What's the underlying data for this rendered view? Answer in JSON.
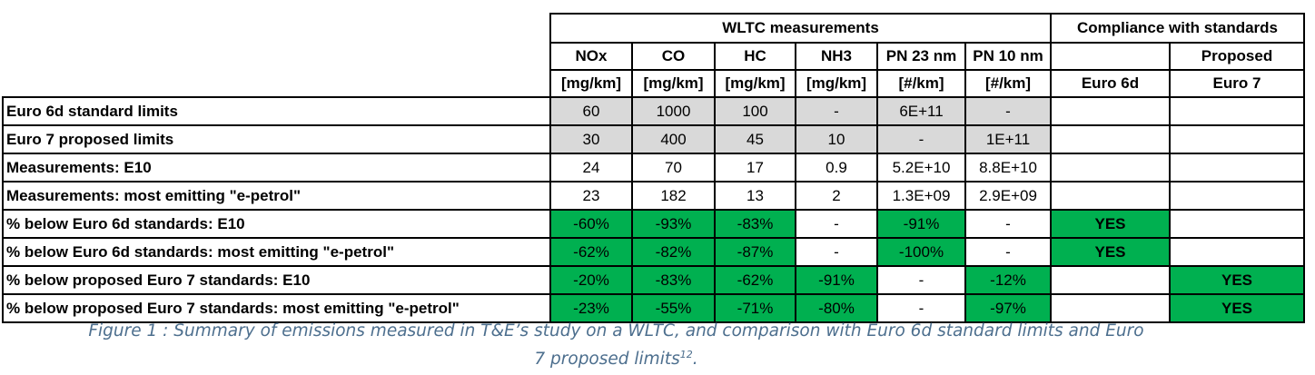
{
  "header": {
    "group_wltc": "WLTC measurements",
    "group_compliance": "Compliance with standards",
    "columns": [
      {
        "name": "NOx",
        "unit": "[mg/km]"
      },
      {
        "name": "CO",
        "unit": "[mg/km]"
      },
      {
        "name": "HC",
        "unit": "[mg/km]"
      },
      {
        "name": "NH3",
        "unit": "[mg/km]"
      },
      {
        "name": "PN 23 nm",
        "unit": "[#/km]"
      },
      {
        "name": "PN 10 nm",
        "unit": "[#/km]"
      }
    ],
    "euro6d": "Euro 6d",
    "proposed_1": "Proposed",
    "proposed_2": "Euro 7"
  },
  "rows": [
    {
      "label": "Euro 6d standard limits",
      "values": [
        "60",
        "1000",
        "100",
        "-",
        "6E+11",
        "-"
      ],
      "euro6d": "",
      "euro7": ""
    },
    {
      "label": "Euro 7 proposed limits",
      "values": [
        "30",
        "400",
        "45",
        "10",
        "-",
        "1E+11"
      ],
      "euro6d": "",
      "euro7": ""
    },
    {
      "label": "Measurements: E10",
      "values": [
        "24",
        "70",
        "17",
        "0.9",
        "5.2E+10",
        "8.8E+10"
      ],
      "euro6d": "",
      "euro7": ""
    },
    {
      "label": "Measurements: most emitting \"e-petrol\"",
      "values": [
        "23",
        "182",
        "13",
        "2",
        "1.3E+09",
        "2.9E+09"
      ],
      "euro6d": "",
      "euro7": ""
    },
    {
      "label": "% below Euro 6d standards: E10",
      "values": [
        "-60%",
        "-93%",
        "-83%",
        "-",
        "-91%",
        "-"
      ],
      "euro6d": "YES",
      "euro7": ""
    },
    {
      "label": "% below Euro 6d standards: most emitting \"e-petrol\"",
      "values": [
        "-62%",
        "-82%",
        "-87%",
        "-",
        "-100%",
        "-"
      ],
      "euro6d": "YES",
      "euro7": ""
    },
    {
      "label": "% below proposed Euro 7 standards: E10",
      "values": [
        "-20%",
        "-83%",
        "-62%",
        "-91%",
        "-",
        "-12%"
      ],
      "euro6d": "",
      "euro7": "YES"
    },
    {
      "label": "% below proposed Euro 7 standards: most emitting \"e-petrol\"",
      "values": [
        "-23%",
        "-55%",
        "-71%",
        "-80%",
        "-",
        "-97%"
      ],
      "euro6d": "",
      "euro7": "YES"
    }
  ],
  "caption": {
    "line1": "Figure 1 : Summary of emissions measured in T&E’s study on a WLTC, and comparison with Euro 6d standard limits and Euro",
    "line2": "7 proposed limits",
    "footnote": "12",
    "end": "."
  },
  "colors": {
    "green": "#00b050",
    "grey": "#d9d9d9",
    "caption": "#4d6f8e"
  }
}
